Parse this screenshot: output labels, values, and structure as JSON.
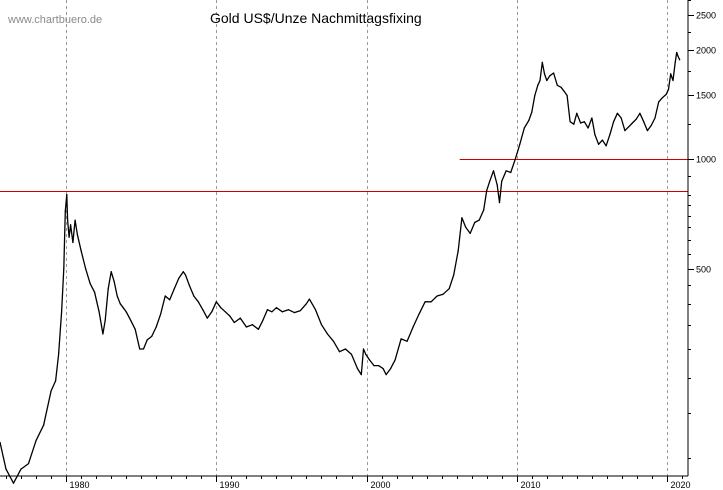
{
  "chart_data": {
    "type": "line",
    "title": "Gold US$/Unze Nachmittagsfixing",
    "watermark": "www.chartbuero.de",
    "xlabel": "",
    "ylabel": "",
    "y_scale": "log",
    "ylim": [
      134,
      2750
    ],
    "xlim": [
      1975.6,
      2021.4
    ],
    "grid": "vertical dashed at decade lines",
    "x_ticks": [
      {
        "value": 1980,
        "label": "1980"
      },
      {
        "value": 1990,
        "label": "1990"
      },
      {
        "value": 2000,
        "label": "2000"
      },
      {
        "value": 2010,
        "label": "2010"
      },
      {
        "value": 2020,
        "label": "2020"
      }
    ],
    "x_minor_ticks": [
      1976,
      1977,
      1978,
      1979,
      1981,
      1982,
      1983,
      1984,
      1985,
      1986,
      1987,
      1988,
      1989,
      1991,
      1992,
      1993,
      1994,
      1995,
      1996,
      1997,
      1998,
      1999,
      2001,
      2002,
      2003,
      2004,
      2005,
      2006,
      2007,
      2008,
      2009,
      2011,
      2012,
      2013,
      2014,
      2015,
      2016,
      2017,
      2018,
      2019,
      2021
    ],
    "y_ticks": [
      {
        "value": 2500,
        "label": "2500"
      },
      {
        "value": 2000,
        "label": "2000"
      },
      {
        "value": 1500,
        "label": "1500"
      },
      {
        "value": 1000,
        "label": "1000"
      },
      {
        "value": 500,
        "label": "500"
      }
    ],
    "y_minor_ticks": [
      2750,
      2250,
      1750,
      1250,
      900,
      800,
      750,
      700,
      650,
      600,
      550,
      450,
      400,
      350,
      300,
      250,
      200,
      150
    ],
    "hlines": [
      {
        "value": 820,
        "x_start": 1975.6,
        "color": "#cc0000"
      },
      {
        "value": 1000,
        "x_start": 2006.2,
        "color": "#cc0000"
      }
    ],
    "series": [
      {
        "color": "#000000",
        "x": [
          1975.6,
          1976.0,
          1976.5,
          1977.0,
          1977.5,
          1978.0,
          1978.5,
          1979.0,
          1979.3,
          1979.5,
          1979.7,
          1979.85,
          1979.95,
          1980.05,
          1980.1,
          1980.2,
          1980.3,
          1980.45,
          1980.6,
          1980.75,
          1981.0,
          1981.3,
          1981.6,
          1981.9,
          1982.2,
          1982.45,
          1982.6,
          1982.8,
          1983.0,
          1983.2,
          1983.4,
          1983.6,
          1983.8,
          1984.0,
          1984.3,
          1984.6,
          1984.9,
          1985.15,
          1985.4,
          1985.7,
          1986.0,
          1986.3,
          1986.6,
          1986.9,
          1987.2,
          1987.5,
          1987.8,
          1987.95,
          1988.2,
          1988.5,
          1988.8,
          1989.1,
          1989.4,
          1989.7,
          1990.0,
          1990.3,
          1990.6,
          1990.9,
          1991.2,
          1991.6,
          1992.0,
          1992.4,
          1992.8,
          1993.1,
          1993.4,
          1993.7,
          1994.0,
          1994.4,
          1994.8,
          1995.2,
          1995.6,
          1996.0,
          1996.2,
          1996.6,
          1997.0,
          1997.4,
          1997.8,
          1998.2,
          1998.6,
          1999.0,
          1999.4,
          1999.65,
          1999.8,
          1999.95,
          2000.2,
          2000.5,
          2000.8,
          2001.1,
          2001.3,
          2001.6,
          2001.9,
          2002.3,
          2002.7,
          2003.1,
          2003.5,
          2003.9,
          2004.3,
          2004.7,
          2005.1,
          2005.5,
          2005.8,
          2006.1,
          2006.35,
          2006.6,
          2006.9,
          2007.2,
          2007.5,
          2007.8,
          2008.0,
          2008.2,
          2008.45,
          2008.7,
          2008.85,
          2009.0,
          2009.3,
          2009.6,
          2009.9,
          2010.2,
          2010.5,
          2010.8,
          2011.0,
          2011.2,
          2011.4,
          2011.55,
          2011.7,
          2011.85,
          2012.0,
          2012.2,
          2012.45,
          2012.7,
          2012.95,
          2013.15,
          2013.35,
          2013.55,
          2013.8,
          2014.0,
          2014.25,
          2014.5,
          2014.75,
          2015.0,
          2015.2,
          2015.45,
          2015.7,
          2015.95,
          2016.2,
          2016.45,
          2016.7,
          2016.95,
          2017.2,
          2017.45,
          2017.7,
          2017.95,
          2018.2,
          2018.45,
          2018.7,
          2018.95,
          2019.2,
          2019.45,
          2019.7,
          2019.95,
          2020.1,
          2020.25,
          2020.4,
          2020.55,
          2020.65,
          2020.75,
          2020.85
        ],
        "values": [
          166,
          140,
          128,
          140,
          145,
          168,
          185,
          230,
          245,
          290,
          380,
          500,
          720,
          800,
          680,
          610,
          660,
          590,
          680,
          620,
          560,
          500,
          455,
          430,
          380,
          330,
          360,
          440,
          490,
          460,
          420,
          400,
          390,
          380,
          360,
          340,
          300,
          300,
          318,
          325,
          345,
          375,
          420,
          410,
          440,
          470,
          490,
          480,
          450,
          420,
          405,
          385,
          365,
          380,
          405,
          390,
          380,
          370,
          355,
          365,
          345,
          350,
          340,
          360,
          385,
          380,
          390,
          380,
          385,
          378,
          383,
          400,
          412,
          385,
          350,
          330,
          315,
          295,
          300,
          290,
          265,
          255,
          300,
          290,
          280,
          270,
          270,
          265,
          255,
          265,
          280,
          320,
          315,
          345,
          375,
          405,
          405,
          420,
          425,
          440,
          480,
          560,
          690,
          650,
          625,
          670,
          680,
          725,
          820,
          870,
          930,
          850,
          760,
          870,
          930,
          920,
          1000,
          1100,
          1220,
          1280,
          1350,
          1500,
          1600,
          1650,
          1850,
          1720,
          1650,
          1700,
          1730,
          1600,
          1580,
          1540,
          1500,
          1270,
          1250,
          1340,
          1260,
          1270,
          1220,
          1300,
          1170,
          1100,
          1130,
          1090,
          1170,
          1270,
          1340,
          1300,
          1200,
          1230,
          1260,
          1290,
          1340,
          1270,
          1200,
          1240,
          1300,
          1440,
          1480,
          1510,
          1560,
          1720,
          1650,
          1850,
          1970,
          1920,
          1880
        ]
      }
    ]
  }
}
